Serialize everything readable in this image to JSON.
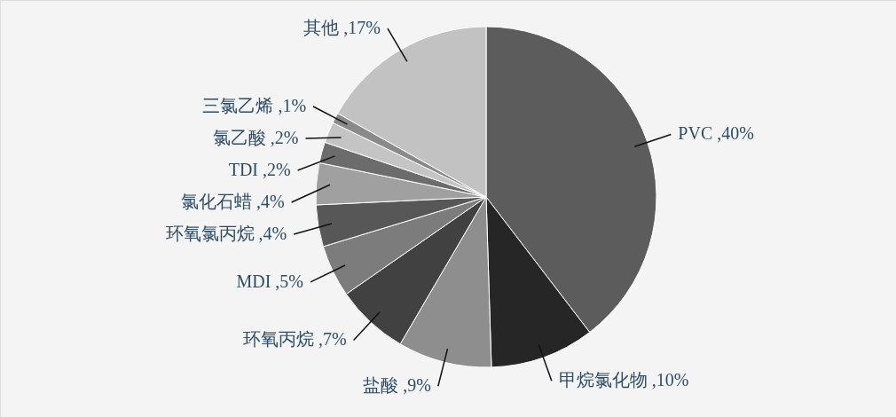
{
  "chart_data": {
    "type": "pie",
    "categories": [
      "PVC",
      "甲烷氯化物",
      "盐酸",
      "环氧丙烷",
      "MDI",
      "环氧氯丙烷",
      "氯化石蜡",
      "TDI",
      "氯乙酸",
      "三氯乙烯",
      "其他"
    ],
    "values": [
      40,
      10,
      9,
      7,
      5,
      4,
      4,
      2,
      2,
      1,
      17
    ],
    "value_labels": [
      ",40%",
      ",10%",
      ",9%",
      ",7%",
      ",5%",
      ",4%",
      ",4%",
      ",2%",
      ",2%",
      ",1%",
      ",17%"
    ],
    "colors": [
      "#5c5c5c",
      "#262626",
      "#8e8e8e",
      "#414141",
      "#7c7c7c",
      "#575757",
      "#a0a0a0",
      "#6c6c6c",
      "#c4c4c4",
      "#8a8a8a",
      "#c2c2c2"
    ]
  }
}
